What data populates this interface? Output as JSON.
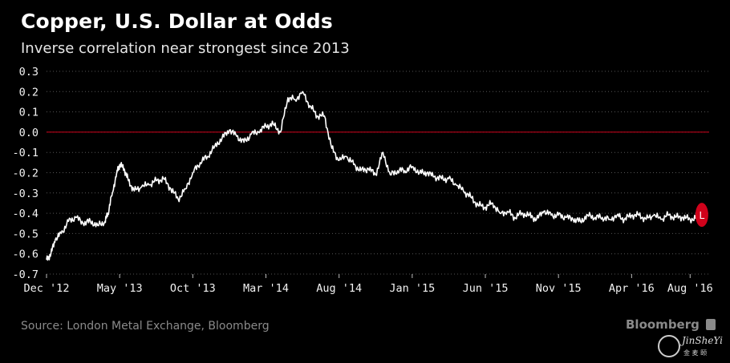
{
  "title": "Copper, U.S. Dollar at Odds",
  "subtitle": "Inverse correlation near strongest since 2013",
  "source": "Source: London Metal Exchange, Bloomberg",
  "brand": "Bloomberg",
  "watermark": {
    "text": "JinSheYi",
    "sub": "金 麦 颐"
  },
  "colors": {
    "background": "#000000",
    "line": "#ffffff",
    "zero_line": "#d0021b",
    "marker": "#d0021b",
    "grid": "#555555"
  },
  "chart_data": {
    "type": "line",
    "title": "Copper, U.S. Dollar at Odds",
    "subtitle": "Inverse correlation near strongest since 2013",
    "xlabel": "",
    "ylabel": "",
    "ylim": [
      -0.7,
      0.3
    ],
    "yticks": [
      "0.3",
      "0.2",
      "0.1",
      "0.0",
      "-0.1",
      "-0.2",
      "-0.3",
      "-0.4",
      "-0.5",
      "-0.6",
      "-0.7"
    ],
    "xticks": [
      "Dec '12",
      "May '13",
      "Oct '13",
      "Mar '14",
      "Aug '14",
      "Jan '15",
      "Jun '15",
      "Nov '15",
      "Apr '16",
      "Aug '16"
    ],
    "reference_line": 0.0,
    "grid": "horizontal dotted",
    "series": [
      {
        "x": [
          0,
          0.3,
          0.6,
          1.0,
          1.5,
          2.0,
          2.5,
          3.0,
          3.5,
          4.0,
          4.2,
          4.5,
          4.8,
          5.0,
          5.3,
          5.6,
          6.0,
          6.5,
          7.0,
          7.5,
          8.0,
          8.5,
          9.0,
          9.5,
          10.0,
          10.5,
          11.0,
          11.5,
          12.0,
          12.5,
          13.0,
          13.5,
          14.0,
          14.5,
          15.0,
          15.5,
          16.0,
          16.5,
          17.0,
          17.5,
          18.0,
          18.5,
          19.0,
          19.5,
          20.0,
          20.5,
          21.0,
          21.5,
          22.0,
          22.5,
          23.0,
          23.5,
          24.0,
          24.5,
          25.0,
          25.5,
          26.0,
          26.5,
          27.0,
          27.5,
          28.0,
          28.5,
          29.0,
          29.5,
          30.0,
          30.5,
          31.0,
          31.5,
          32.0,
          32.5,
          33.0,
          33.5,
          34.0,
          34.5,
          35.0,
          35.5,
          36.0,
          36.5,
          37.0,
          37.5,
          38.0,
          38.5,
          39.0,
          39.5,
          40.0,
          40.5,
          41.0,
          41.5,
          42.0,
          42.5,
          43.0,
          43.5,
          44.0,
          44.5
        ],
        "values": [
          -0.63,
          -0.6,
          -0.53,
          -0.5,
          -0.44,
          -0.42,
          -0.45,
          -0.44,
          -0.46,
          -0.44,
          -0.4,
          -0.3,
          -0.2,
          -0.16,
          -0.18,
          -0.24,
          -0.29,
          -0.27,
          -0.26,
          -0.24,
          -0.23,
          -0.28,
          -0.33,
          -0.28,
          -0.2,
          -0.15,
          -0.12,
          -0.07,
          -0.03,
          0.01,
          -0.02,
          -0.05,
          -0.01,
          0.0,
          0.03,
          0.04,
          0.0,
          0.17,
          0.16,
          0.2,
          0.13,
          0.08,
          0.08,
          -0.08,
          -0.14,
          -0.12,
          -0.16,
          -0.19,
          -0.18,
          -0.21,
          -0.1,
          -0.21,
          -0.19,
          -0.19,
          -0.17,
          -0.2,
          -0.2,
          -0.22,
          -0.23,
          -0.23,
          -0.26,
          -0.29,
          -0.32,
          -0.36,
          -0.37,
          -0.35,
          -0.4,
          -0.39,
          -0.42,
          -0.4,
          -0.41,
          -0.43,
          -0.39,
          -0.41,
          -0.41,
          -0.42,
          -0.43,
          -0.44,
          -0.41,
          -0.42,
          -0.42,
          -0.43,
          -0.41,
          -0.43,
          -0.41,
          -0.41,
          -0.43,
          -0.41,
          -0.43,
          -0.41,
          -0.42,
          -0.42,
          -0.43,
          -0.42
        ],
        "note_x_units": "months since Dec 2012"
      }
    ],
    "last_point_marker": {
      "label": "L",
      "value": -0.4
    }
  }
}
